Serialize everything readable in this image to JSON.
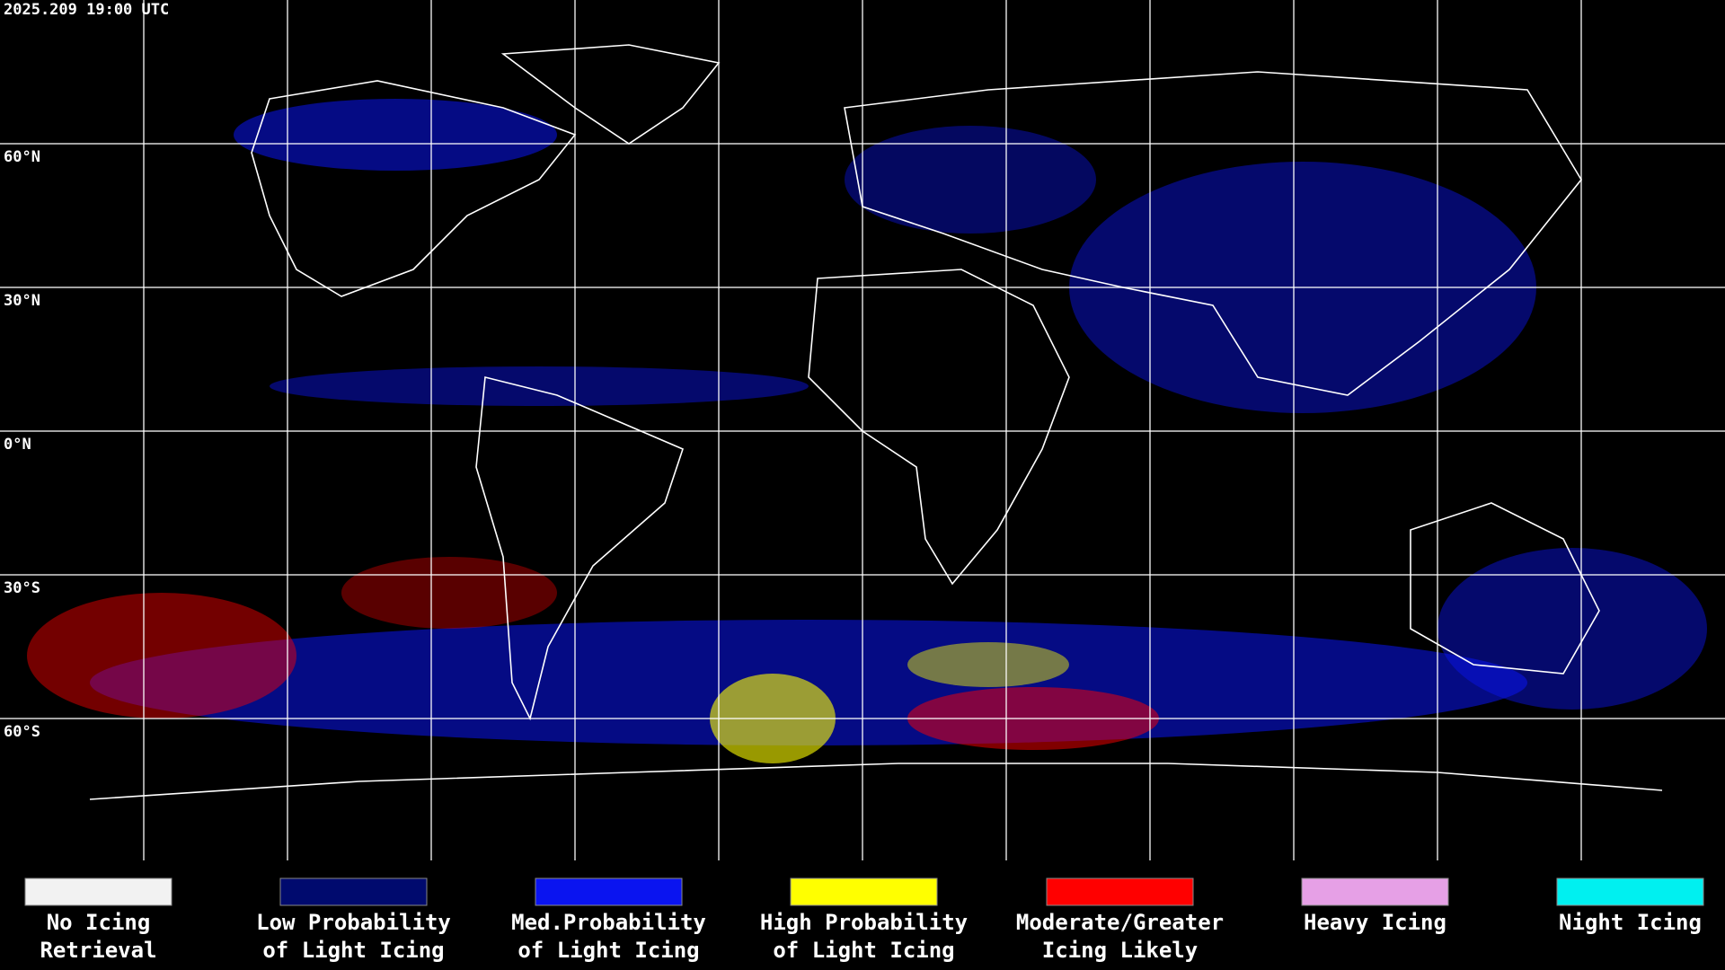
{
  "header": {
    "timestamp": "2025.209 19:00 UTC"
  },
  "latitude_labels": [
    "60°N",
    "30°N",
    "0°N",
    "30°S",
    "60°S"
  ],
  "legend": [
    {
      "color": "#f2f2f2",
      "lines": [
        "No Icing",
        "Retrieval"
      ]
    },
    {
      "color": "#000a6e",
      "lines": [
        "Low Probability",
        "of Light Icing"
      ]
    },
    {
      "color": "#0a14f0",
      "lines": [
        "Med.Probability",
        "of Light Icing"
      ]
    },
    {
      "color": "#ffff00",
      "lines": [
        "High Probability",
        "of Light Icing"
      ]
    },
    {
      "color": "#ff0000",
      "lines": [
        "Moderate/Greater",
        "Icing Likely"
      ]
    },
    {
      "color": "#e6a0e6",
      "lines": [
        "Heavy Icing"
      ]
    },
    {
      "color": "#00f0f0",
      "lines": [
        "Night Icing"
      ]
    }
  ]
}
